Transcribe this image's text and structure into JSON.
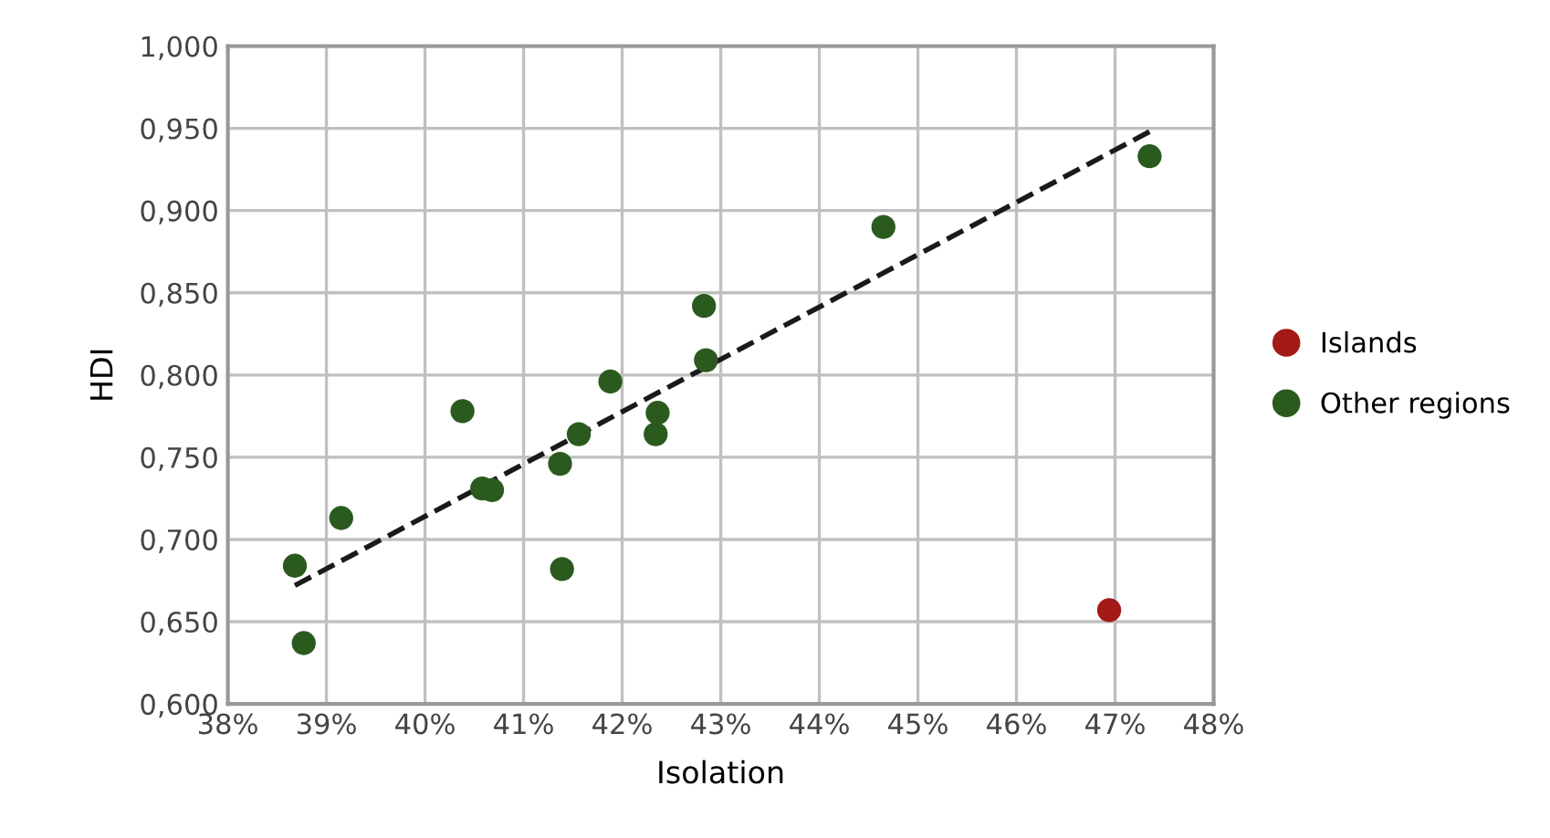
{
  "chart_data": {
    "type": "scatter",
    "xlabel": "Isolation",
    "ylabel": "HDI",
    "series": [
      {
        "name": "Islands",
        "color": "#a31a17",
        "x": [
          46.94
        ],
        "values": [
          0.657
        ]
      },
      {
        "name": "Other regions",
        "color": "#2b5a1f",
        "x": [
          38.68,
          38.77,
          39.15,
          40.38,
          40.58,
          40.68,
          41.37,
          41.39,
          41.56,
          41.88,
          42.34,
          42.36,
          42.83,
          42.85,
          44.65,
          47.35
        ],
        "values": [
          0.684,
          0.637,
          0.713,
          0.778,
          0.731,
          0.73,
          0.746,
          0.682,
          0.764,
          0.796,
          0.764,
          0.777,
          0.842,
          0.809,
          0.89,
          0.933
        ]
      },
      {
        "type": "line",
        "color": "#1a1a1a",
        "line_style": "dashed",
        "marker": "none",
        "x": [
          38.68,
          47.35
        ],
        "values": [
          0.672,
          0.948
        ]
      }
    ],
    "marker": "circle",
    "grid": true,
    "legend": "right",
    "xlim": [
      38,
      48
    ],
    "ylim": [
      0.6,
      1.0
    ],
    "xticks": [
      {
        "value": 38,
        "label": "38%"
      },
      {
        "value": 39,
        "label": "39%"
      },
      {
        "value": 40,
        "label": "40%"
      },
      {
        "value": 41,
        "label": "41%"
      },
      {
        "value": 42,
        "label": "42%"
      },
      {
        "value": 43,
        "label": "43%"
      },
      {
        "value": 44,
        "label": "44%"
      },
      {
        "value": 45,
        "label": "45%"
      },
      {
        "value": 46,
        "label": "46%"
      },
      {
        "value": 47,
        "label": "47%"
      },
      {
        "value": 48,
        "label": "48%"
      }
    ],
    "yticks": [
      {
        "value": 0.6,
        "label": "0,600"
      },
      {
        "value": 0.65,
        "label": "0,650"
      },
      {
        "value": 0.7,
        "label": "0,700"
      },
      {
        "value": 0.75,
        "label": "0,750"
      },
      {
        "value": 0.8,
        "label": "0,800"
      },
      {
        "value": 0.85,
        "label": "0,850"
      },
      {
        "value": 0.9,
        "label": "0,900"
      },
      {
        "value": 0.95,
        "label": "0,950"
      },
      {
        "value": 1.0,
        "label": "1,000"
      }
    ]
  }
}
